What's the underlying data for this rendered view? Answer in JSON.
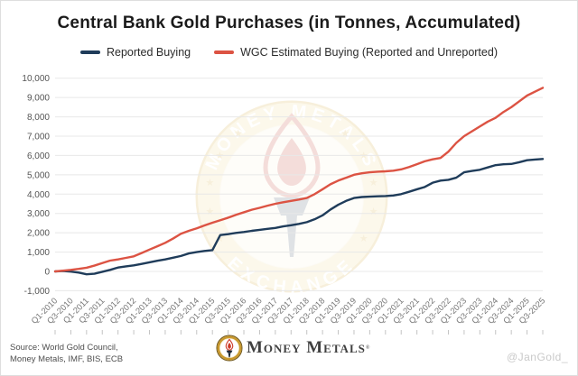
{
  "colors": {
    "grid": "#e8e8e8",
    "y_axis_label": "#555555",
    "x_axis_label": "#757575",
    "tick_mark": "#c4c4c4",
    "watermark_gold": "#d4a62e",
    "watermark_band": "#eed98f",
    "watermark_field": "#f6e9c8",
    "watermark_flame": "#c23b2b",
    "watermark_torch": "#46586a"
  },
  "watermark": {
    "arc_top": "MONEY METALS",
    "arc_bottom": "EXCHANGE"
  },
  "footer": {
    "source_line1": "Source: World Gold Council,",
    "source_line2": "Money Metals, IMF, BIS, ECB",
    "brand": "Money Metals",
    "brand_mark": "®",
    "handle": "@JanGold_"
  },
  "chart_data": {
    "type": "line",
    "title": "Central Bank Gold Purchases (in Tonnes, Accumulated)",
    "x_tick_labels": [
      "Q1-2010",
      "Q3-2010",
      "Q1-2011",
      "Q3-2011",
      "Q1-2012",
      "Q3-2012",
      "Q1-2013",
      "Q3-2013",
      "Q1-2014",
      "Q3-2014",
      "Q1-2015",
      "Q3-2015",
      "Q1-2016",
      "Q3-2016",
      "Q1-2017",
      "Q3-2017",
      "Q1-2018",
      "Q3-2018",
      "Q1-2019",
      "Q3-2019",
      "Q1-2020",
      "Q3-2020",
      "Q1-2021",
      "Q3-2021",
      "Q1-2022",
      "Q3-2022",
      "Q1-2023",
      "Q3-2023",
      "Q1-2024",
      "Q3-2024",
      "Q1-2025",
      "Q3-2025"
    ],
    "x_points_per_tick": 2,
    "ylim": [
      -1000,
      10000
    ],
    "y_ticks": [
      -1000,
      0,
      1000,
      2000,
      3000,
      4000,
      5000,
      6000,
      7000,
      8000,
      9000,
      10000
    ],
    "grid": "horizontal-only",
    "legend_position": "top-center",
    "series": [
      {
        "name": "Reported Buying",
        "color": "#1f3c5a",
        "values": [
          0,
          20,
          -10,
          -60,
          -150,
          -120,
          -20,
          80,
          200,
          260,
          310,
          390,
          470,
          550,
          620,
          710,
          800,
          930,
          1000,
          1060,
          1100,
          1880,
          1930,
          1990,
          2040,
          2100,
          2150,
          2200,
          2250,
          2330,
          2390,
          2460,
          2550,
          2700,
          2900,
          3200,
          3450,
          3650,
          3800,
          3850,
          3870,
          3890,
          3900,
          3930,
          4000,
          4120,
          4250,
          4370,
          4590,
          4700,
          4740,
          4850,
          5130,
          5200,
          5260,
          5380,
          5500,
          5545,
          5560,
          5650,
          5755,
          5790,
          5820
        ]
      },
      {
        "name": "WGC Estimated Buying (Reported and Unreported)",
        "color": "#dc5343",
        "values": [
          0,
          40,
          80,
          130,
          190,
          300,
          430,
          560,
          620,
          700,
          780,
          950,
          1130,
          1300,
          1480,
          1700,
          1950,
          2100,
          2230,
          2380,
          2520,
          2650,
          2780,
          2930,
          3060,
          3190,
          3290,
          3400,
          3500,
          3580,
          3650,
          3720,
          3800,
          4000,
          4250,
          4510,
          4700,
          4850,
          5000,
          5080,
          5130,
          5160,
          5180,
          5210,
          5280,
          5400,
          5550,
          5700,
          5800,
          5870,
          6200,
          6650,
          7000,
          7250,
          7500,
          7750,
          7950,
          8250,
          8500,
          8800,
          9100,
          9300,
          9500
        ]
      }
    ]
  }
}
